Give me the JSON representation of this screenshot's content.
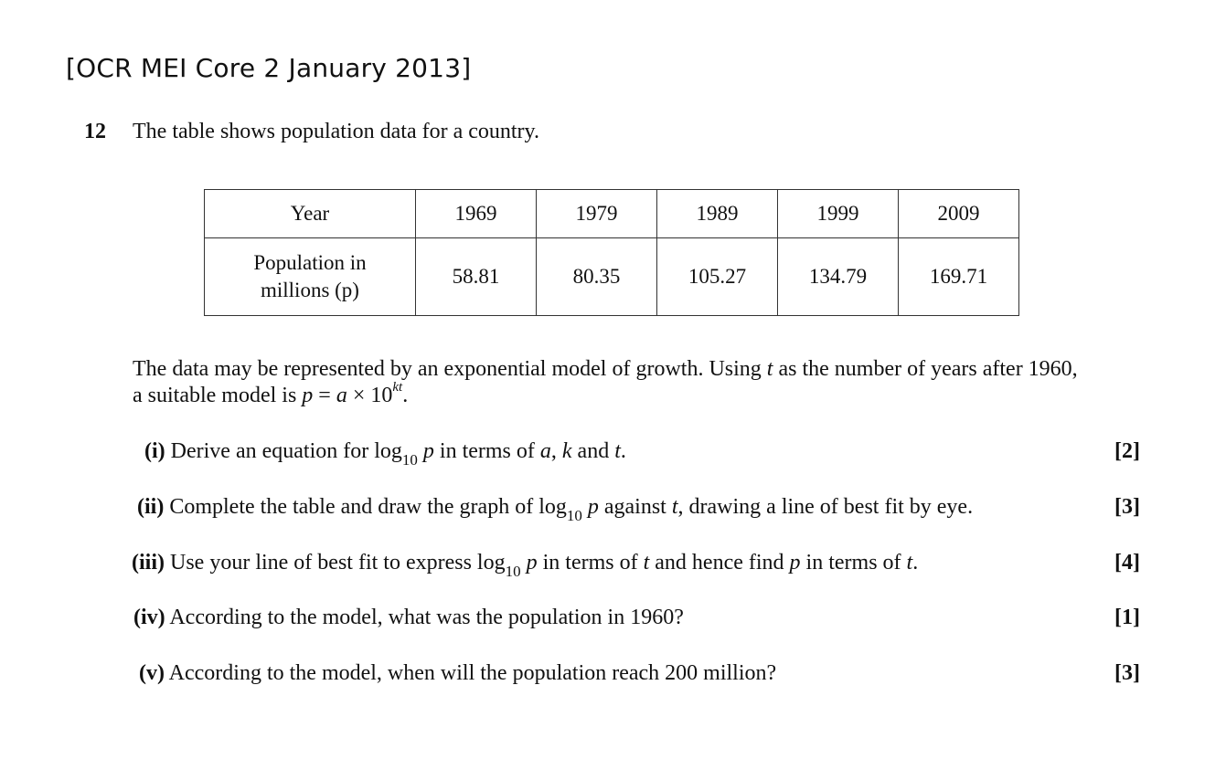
{
  "heading": "[OCR MEI Core 2 January 2013]",
  "question": {
    "number": "12",
    "intro": "The table shows population data for a country."
  },
  "table": {
    "row1_header": "Year",
    "row2_header_line1": "Population in",
    "row2_header_line2": "millions (p)",
    "years": [
      "1969",
      "1979",
      "1989",
      "1999",
      "2009"
    ],
    "populations": [
      "58.81",
      "80.35",
      "105.27",
      "134.79",
      "169.71"
    ]
  },
  "paragraph": {
    "line1_a": "The data may be represented by an exponential model of growth. Using ",
    "line1_t": "t",
    "line1_b": " as the number of years after 1960,",
    "line2_a": "a suitable model is ",
    "formula_p": "p",
    "formula_eq": " = ",
    "formula_a": "a",
    "formula_times": " × 10",
    "formula_exp": "kt",
    "line2_end": "."
  },
  "parts": [
    {
      "label": "(i)",
      "text": "Derive an equation for log10 p in terms of a, k and t.",
      "marks": "[2]"
    },
    {
      "label": "(ii)",
      "text": "Complete the table and draw the graph of log10 p against t, drawing a line of best fit by eye.",
      "marks": "[3]"
    },
    {
      "label": "(iii)",
      "text": "Use your line of best fit to express log10 p in terms of t and hence find p in terms of t.",
      "marks": "[4]"
    },
    {
      "label": "(iv)",
      "text": "According to the model, what was the population in 1960?",
      "marks": "[1]"
    },
    {
      "label": "(v)",
      "text": "According to the model, when will the population reach 200 million?",
      "marks": "[3]"
    }
  ]
}
